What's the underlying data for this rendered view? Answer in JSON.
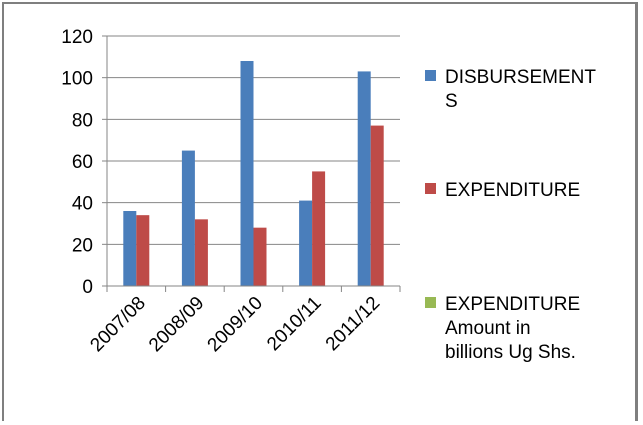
{
  "chart_data": {
    "type": "bar",
    "categories": [
      "2007/08",
      "2008/09",
      "2009/10",
      "2010/11",
      "2011/12"
    ],
    "series": [
      {
        "name": "DISBURSEMENTS",
        "legend_lines": [
          "DISBURSEMENT",
          "S"
        ],
        "color": "#4a7ebb",
        "values": [
          36,
          65,
          108,
          41,
          103
        ]
      },
      {
        "name": "EXPENDITURE",
        "legend_lines": [
          "EXPENDITURE"
        ],
        "color": "#be4b48",
        "values": [
          34,
          32,
          28,
          55,
          77
        ]
      },
      {
        "name": "EXPENDITURE Amount in billions Ug Shs.",
        "legend_lines": [
          "EXPENDITURE",
          "Amount in",
          "billions Ug Shs."
        ],
        "color": "#98b954",
        "values": [
          0,
          0,
          0,
          0,
          0
        ]
      }
    ],
    "yticks": [
      "0",
      "20",
      "40",
      "60",
      "80",
      "100",
      "120"
    ],
    "ylim": [
      0,
      120
    ],
    "grid": true,
    "legend_position": "right",
    "title": "",
    "xlabel": "",
    "ylabel": ""
  }
}
